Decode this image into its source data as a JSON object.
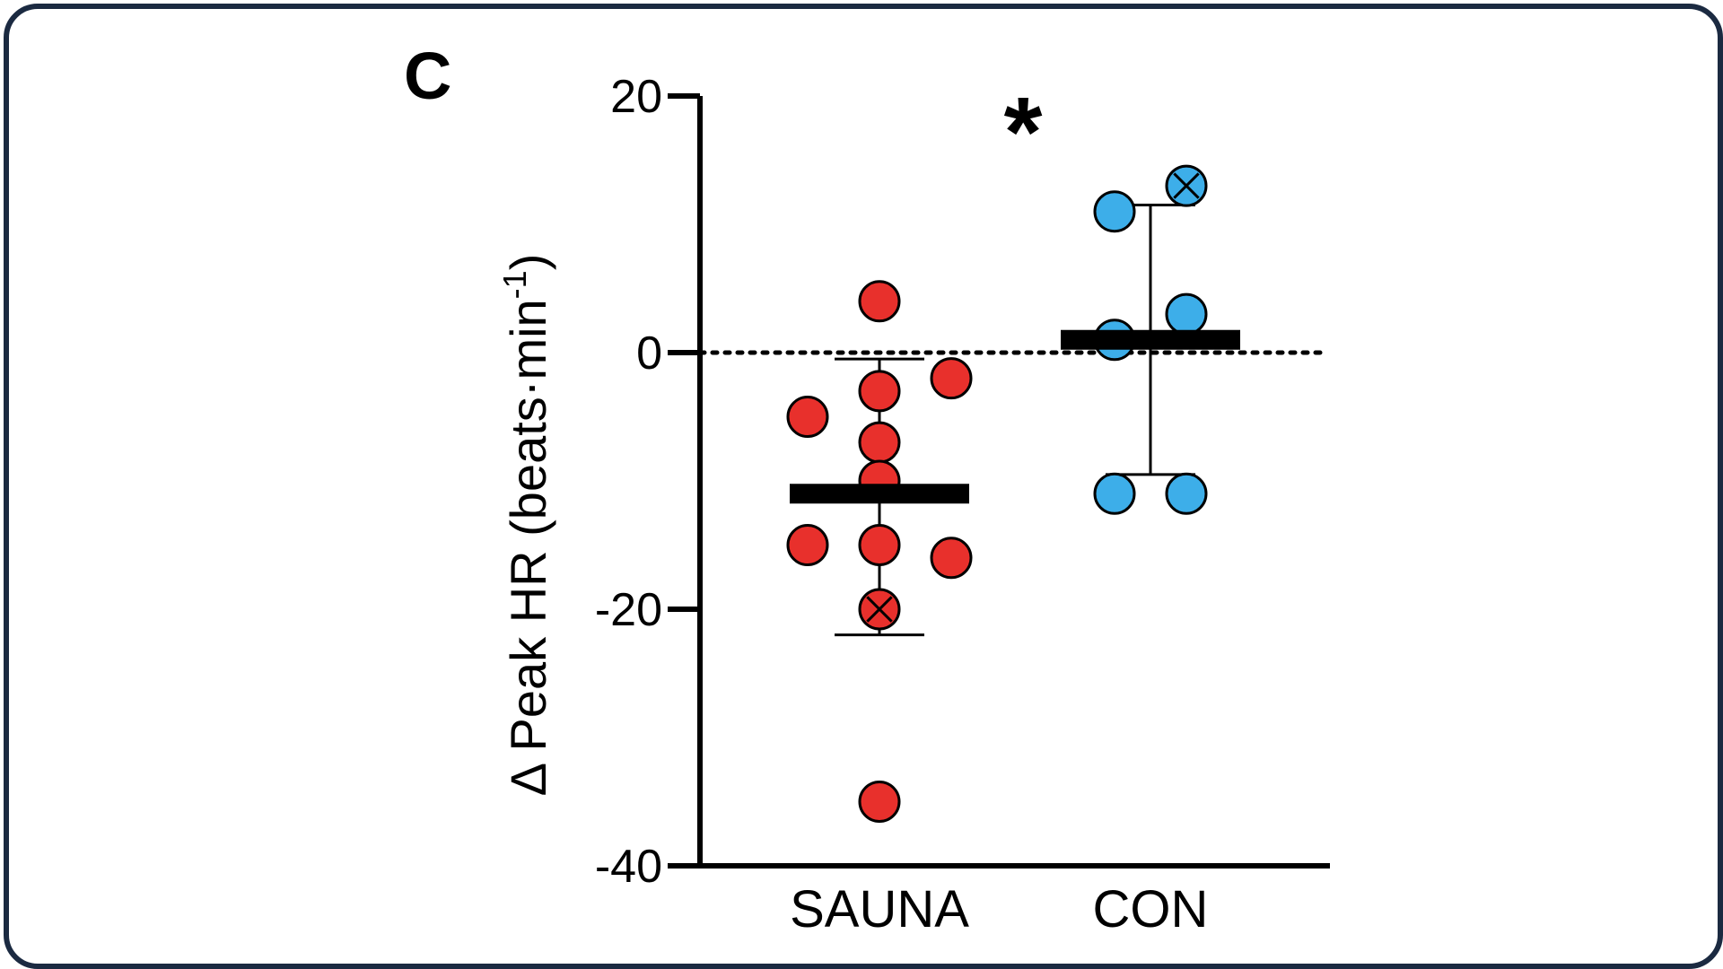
{
  "panel_letter": "C",
  "chart_data": {
    "type": "scatter",
    "ylabel": "Δ Peak HR (beats·min",
    "ylabel_superscript": "-1",
    "ylabel_close": ")",
    "ylim": [
      -40,
      20
    ],
    "yticks": [
      20,
      0,
      -20,
      -40
    ],
    "reference_line": 0,
    "categories": [
      "SAUNA",
      "CON"
    ],
    "significance": {
      "label": "*",
      "between": [
        "SAUNA",
        "CON"
      ]
    },
    "series": [
      {
        "category": "SAUNA",
        "color": "#e8302c",
        "mean": -11,
        "error_low": -22,
        "error_high": -0.5,
        "points": [
          {
            "x_offset": 0,
            "y": 4
          },
          {
            "x_offset": 0,
            "y": -3
          },
          {
            "x_offset": 1,
            "y": -2
          },
          {
            "x_offset": -1,
            "y": -5
          },
          {
            "x_offset": 0,
            "y": -7
          },
          {
            "x_offset": 0,
            "y": -10
          },
          {
            "x_offset": -1,
            "y": -15
          },
          {
            "x_offset": 0,
            "y": -15
          },
          {
            "x_offset": 1,
            "y": -16
          },
          {
            "x_offset": 0,
            "y": -20,
            "marked": true
          },
          {
            "x_offset": 0,
            "y": -35
          }
        ]
      },
      {
        "category": "CON",
        "color": "#3daee9",
        "mean": 1,
        "error_low": -9.5,
        "error_high": 11.5,
        "points": [
          {
            "x_offset": 0.5,
            "y": 13,
            "marked": true
          },
          {
            "x_offset": -0.5,
            "y": 11
          },
          {
            "x_offset": 0.5,
            "y": 3
          },
          {
            "x_offset": -0.5,
            "y": 1
          },
          {
            "x_offset": -0.5,
            "y": -11
          },
          {
            "x_offset": 0.5,
            "y": -11
          }
        ]
      }
    ]
  }
}
